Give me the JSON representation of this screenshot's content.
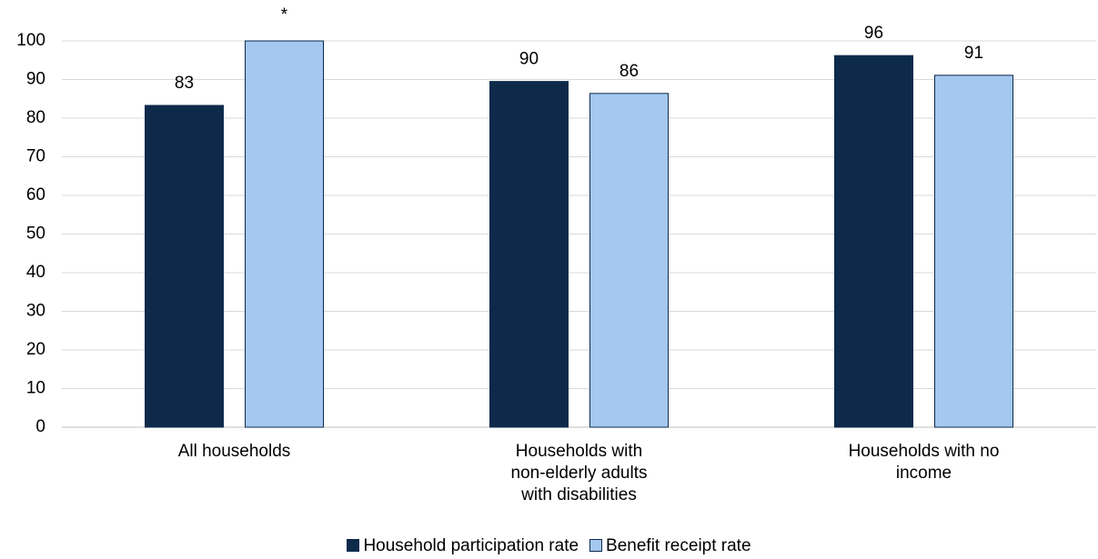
{
  "chart_data": {
    "type": "bar",
    "categories": [
      "All households",
      "Households with non-elderly adults with disabilities",
      "Households with no income"
    ],
    "series": [
      {
        "name": "Household participation rate",
        "color": "#0d2a4b",
        "values": [
          83.3,
          89.5,
          96.2
        ],
        "value_labels": [
          "83",
          "90",
          "96"
        ]
      },
      {
        "name": "Benefit receipt rate",
        "color": "#a4c8f0",
        "values": [
          100,
          86.4,
          91.1
        ],
        "value_labels": [
          "*",
          "86",
          "91"
        ]
      }
    ],
    "ylim": [
      0,
      100
    ],
    "yticks": [
      0,
      10,
      20,
      30,
      40,
      50,
      60,
      70,
      80,
      90,
      100
    ],
    "grid": true,
    "legend": "bottom"
  }
}
